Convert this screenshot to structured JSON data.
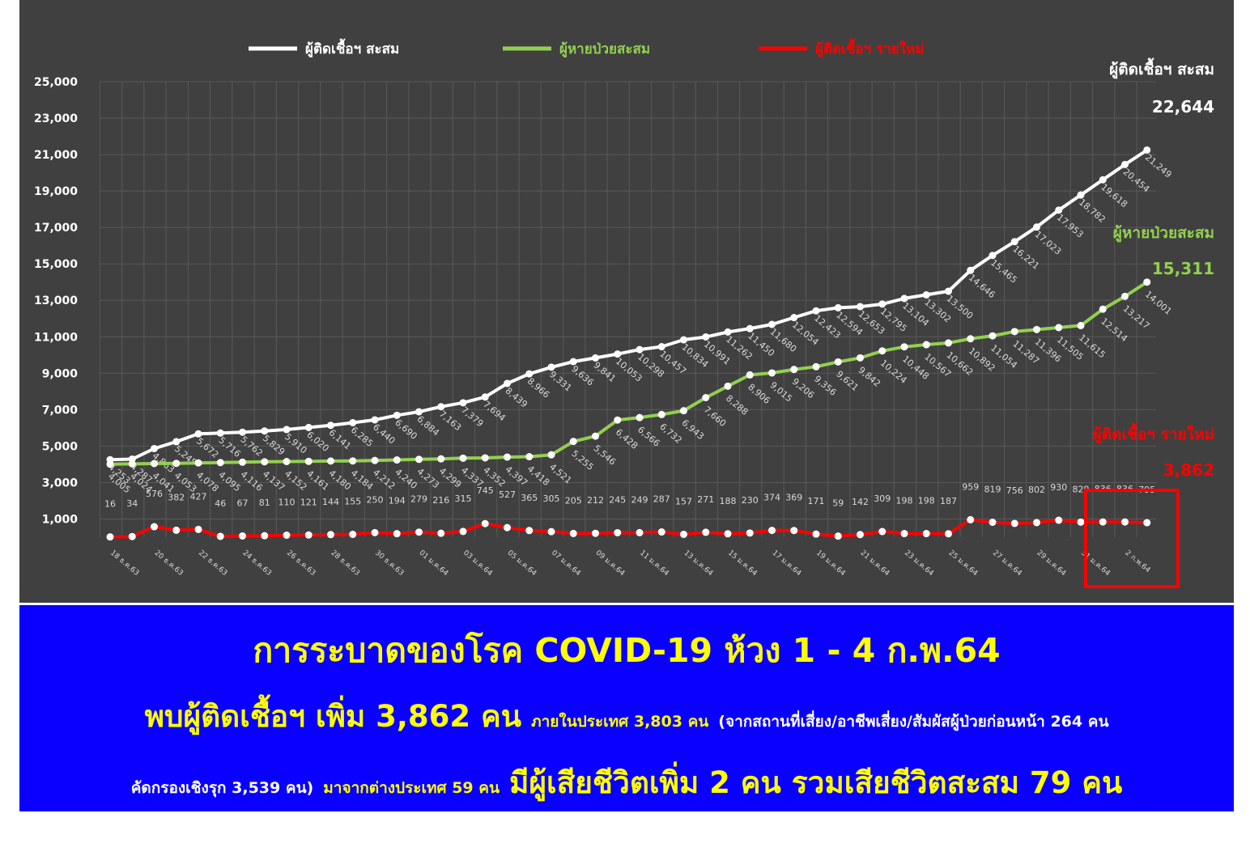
{
  "legend": [
    {
      "label": "ผู้ติดเชื้อฯ สะสม",
      "color": "#ffffff"
    },
    {
      "label": "ผู้หายป่วยสะสม",
      "color": "#92d050"
    },
    {
      "label": "ผู้ติดเชื้อฯ รายใหม่",
      "color": "#ff0000"
    }
  ],
  "callouts": {
    "cumulative": {
      "label": "ผู้ติดเชื้อฯ สะสม",
      "value": "22,644",
      "color": "#ffffff"
    },
    "recovered": {
      "label": "ผู้หายป่วยสะสม",
      "value": "15,311",
      "color": "#92d050"
    },
    "new": {
      "label": "ผู้ติดเชื้อฯ รายใหม่",
      "value": "3,862",
      "color": "#ff0000"
    }
  },
  "chart_data": {
    "type": "line",
    "ylim": [
      0,
      25000
    ],
    "y_ticks": [
      "1,000",
      "3,000",
      "5,000",
      "7,000",
      "9,000",
      "11,000",
      "13,000",
      "15,000",
      "17,000",
      "19,000",
      "21,000",
      "23,000",
      "25,000"
    ],
    "y_tick_values": [
      1000,
      3000,
      5000,
      7000,
      9000,
      11000,
      13000,
      15000,
      17000,
      19000,
      21000,
      23000,
      25000
    ],
    "x_tick_labels": [
      "18 ธ.ค.63",
      "20 ธ.ค.63",
      "22 ธ.ค.63",
      "24 ธ.ค.63",
      "26 ธ.ค.63",
      "28 ธ.ค.63",
      "30 ธ.ค.63",
      "01 ม.ค.64",
      "03 ม.ค.64",
      "05 ม.ค.64",
      "07 ม.ค.64",
      "09 ม.ค.64",
      "11 ม.ค.64",
      "13 ม.ค.64",
      "15 ม.ค.64",
      "17 ม.ค.64",
      "19 ม.ค.64",
      "21 ม.ค.64",
      "23 ม.ค.64",
      "25 ม.ค.64",
      "27 ม.ค.64",
      "29 ม.ค.64",
      "31 ม.ค.64",
      "2 ก.พ.64"
    ],
    "series": [
      {
        "name": "ผู้ติดเชื้อฯ สะสม",
        "color": "#ffffff",
        "values": [
          4253,
          4287,
          4863,
          5245,
          5672,
          5716,
          5762,
          5829,
          5910,
          6020,
          6141,
          6285,
          6440,
          6690,
          6884,
          7163,
          7379,
          7694,
          8439,
          8966,
          9331,
          9636,
          9841,
          10053,
          10298,
          10457,
          10834,
          10991,
          11262,
          11450,
          11680,
          12054,
          12423,
          12594,
          12653,
          12795,
          13104,
          13302,
          13500,
          14646,
          15465,
          16221,
          17023,
          17953,
          18782,
          19618,
          20454,
          21249
        ],
        "labels": [
          "4,253",
          "4,287",
          "4,863",
          "5,245",
          "5,672",
          "5,716",
          "5,762",
          "5,829",
          "5,910",
          "6,020",
          "6,141",
          "6,285",
          "6,440",
          "6,690",
          "6,884",
          "7,163",
          "7,379",
          "7,694",
          "8,439",
          "8,966",
          "9,331",
          "9,636",
          "9,841",
          "10,053",
          "10,298",
          "10,457",
          "10,834",
          "10,991",
          "11,262",
          "11,450",
          "11,680",
          "12,054",
          "12,423",
          "12,594",
          "12,653",
          "12,795",
          "13,104",
          "13,302",
          "13,500",
          "14,646",
          "15,465",
          "16,221",
          "17,023",
          "17,953",
          "18,782",
          "19,618",
          "20,454",
          "21,249"
        ]
      },
      {
        "name": "ผู้หายป่วยสะสม",
        "color": "#92d050",
        "values": [
          4005,
          4024,
          4041,
          4053,
          4078,
          4095,
          4116,
          4137,
          4152,
          4161,
          4180,
          4184,
          4212,
          4240,
          4273,
          4299,
          4337,
          4352,
          4397,
          4418,
          4521,
          5255,
          5546,
          6428,
          6566,
          6732,
          6943,
          7660,
          8288,
          8906,
          9015,
          9206,
          9356,
          9621,
          9842,
          10224,
          10448,
          10567,
          10662,
          10892,
          11054,
          11287,
          11396,
          11505,
          11615,
          12514,
          13217,
          14001
        ],
        "labels": [
          "4,005",
          "4,024",
          "4,041",
          "4,053",
          "4,078",
          "4,095",
          "4,116",
          "4,137",
          "4,152",
          "4,161",
          "4,180",
          "4,184",
          "4,212",
          "4,240",
          "4,273",
          "4,299",
          "4,337",
          "4,352",
          "4,397",
          "4,418",
          "4,521",
          "5,255",
          "5,546",
          "6,428",
          "6,566",
          "6,732",
          "6,943",
          "7,660",
          "8,288",
          "8,906",
          "9,015",
          "9,206",
          "9,356",
          "9,621",
          "9,842",
          "10,224",
          "10,448",
          "10,567",
          "10,662",
          "10,892",
          "11,054",
          "11,287",
          "11,396",
          "11,505",
          "11,615",
          "12,514",
          "13,217",
          "14,001"
        ]
      },
      {
        "name": "ผู้ติดเชื้อฯ รายใหม่",
        "color": "#ff0000",
        "values": [
          16,
          34,
          576,
          382,
          427,
          46,
          67,
          81,
          110,
          121,
          144,
          155,
          250,
          194,
          279,
          216,
          315,
          745,
          527,
          365,
          305,
          205,
          212,
          245,
          249,
          287,
          157,
          271,
          188,
          230,
          374,
          369,
          171,
          59,
          142,
          309,
          198,
          198,
          187,
          959,
          819,
          756,
          802,
          930,
          829,
          836,
          836,
          795
        ],
        "labels": [
          "16",
          "34",
          "576",
          "382",
          "427",
          "46",
          "67",
          "81",
          "110",
          "121",
          "144",
          "155",
          "250",
          "194",
          "279",
          "216",
          "315",
          "745",
          "527",
          "365",
          "305",
          "205",
          "212",
          "245",
          "249",
          "287",
          "157",
          "271",
          "188",
          "230",
          "374",
          "369",
          "171",
          "59",
          "142",
          "309",
          "198",
          "198",
          "187",
          "959",
          "819",
          "756",
          "802",
          "930",
          "829",
          "836",
          "836",
          "795"
        ]
      }
    ]
  },
  "banner": {
    "title": "การระบาดของโรค COVID-19 ห้วง 1 - 4 ก.พ.64",
    "line1_big": "พบผู้ติดเชื้อฯ เพิ่ม 3,862 คน",
    "line1_small": "ภายในประเทศ 3,803 คน",
    "line1_white": "(จากสถานที่เสี่ยง/อาชีพเสี่ยง/สัมผัสผู้ป่วยก่อนหน้า 264 คน",
    "line2_white": "คัดกรองเชิงรุก 3,539 คน)",
    "line2_small": "มาจากต่างประเทศ 59 คน",
    "line2_big": "มีผู้เสียชีวิตเพิ่ม 2 คน รวมเสียชีวิตสะสม 79 คน"
  }
}
